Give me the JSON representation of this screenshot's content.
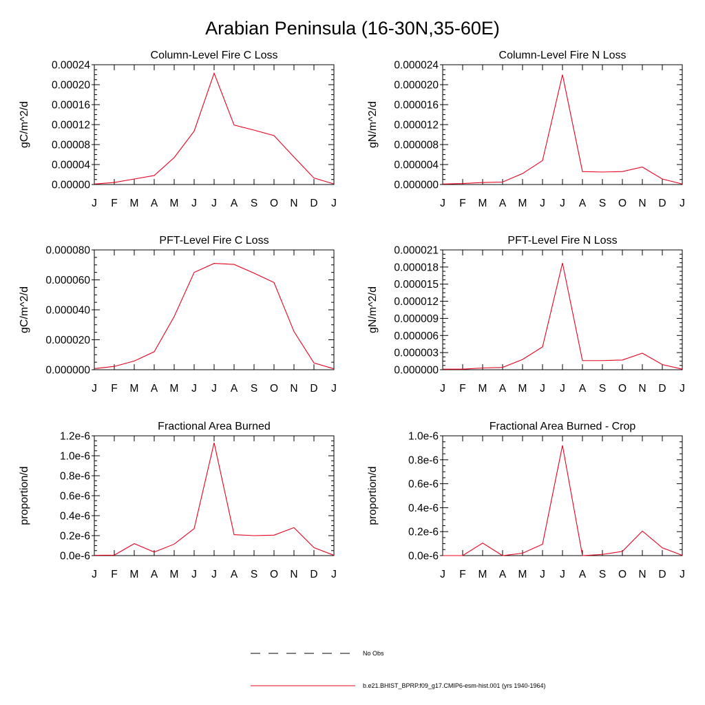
{
  "title": "Arabian Peninsula (16-30N,35-60E)",
  "colors": {
    "series": "#e8001c",
    "obs": "#000000",
    "axis": "#000000"
  },
  "legend": {
    "obs_label": "No Obs",
    "model_label": "b.e21.BHIST_BPRP.f09_g17.CMIP6-esm-hist.001 (yrs 1940-1964)"
  },
  "chart_data": [
    {
      "type": "line",
      "title": "Column-Level Fire C Loss",
      "ylabel": "gC/m^2/d",
      "categories": [
        "J",
        "F",
        "M",
        "A",
        "M",
        "J",
        "J",
        "A",
        "S",
        "O",
        "N",
        "D",
        "J"
      ],
      "yticks": [
        "0.00000",
        "0.00004",
        "0.00008",
        "0.00012",
        "0.00016",
        "0.00020",
        "0.00024"
      ],
      "ylim": [
        0,
        0.00024
      ],
      "series": [
        {
          "values": [
            1e-06,
            4e-06,
            1.1e-05,
            1.8e-05,
            5.4e-05,
            0.000107,
            0.000223,
            0.000119,
            0.000109,
            9.8e-05,
            5.5e-05,
            1.3e-05,
            1e-06
          ]
        }
      ]
    },
    {
      "type": "line",
      "title": "Column-Level Fire N Loss",
      "ylabel": "gN/m^2/d",
      "categories": [
        "J",
        "F",
        "M",
        "A",
        "M",
        "J",
        "J",
        "A",
        "S",
        "O",
        "N",
        "D",
        "J"
      ],
      "yticks": [
        "0.000000",
        "0.000004",
        "0.000008",
        "0.000012",
        "0.000016",
        "0.000020",
        "0.000024"
      ],
      "ylim": [
        0,
        2.4e-05
      ],
      "series": [
        {
          "values": [
            1e-07,
            2e-07,
            4e-07,
            5e-07,
            2.2e-06,
            4.8e-06,
            2.2e-05,
            2.6e-06,
            2.5e-06,
            2.6e-06,
            3.5e-06,
            1.1e-06,
            1e-07
          ]
        }
      ]
    },
    {
      "type": "line",
      "title": "PFT-Level Fire C Loss",
      "ylabel": "gC/m^2/d",
      "categories": [
        "J",
        "F",
        "M",
        "A",
        "M",
        "J",
        "J",
        "A",
        "S",
        "O",
        "N",
        "D",
        "J"
      ],
      "yticks": [
        "0.000000",
        "0.000020",
        "0.000040",
        "0.000060",
        "0.000080"
      ],
      "ylim": [
        0,
        8e-05
      ],
      "series": [
        {
          "values": [
            7e-07,
            2.2e-06,
            5.8e-06,
            1.2e-05,
            3.55e-05,
            6.5e-05,
            7.1e-05,
            7.03e-05,
            6.45e-05,
            5.82e-05,
            2.55e-05,
            4.5e-06,
            6e-07
          ]
        }
      ]
    },
    {
      "type": "line",
      "title": "PFT-Level Fire N Loss",
      "ylabel": "gN/m^2/d",
      "categories": [
        "J",
        "F",
        "M",
        "A",
        "M",
        "J",
        "J",
        "A",
        "S",
        "O",
        "N",
        "D",
        "J"
      ],
      "yticks": [
        "0.000000",
        "0.000003",
        "0.000006",
        "0.000009",
        "0.000012",
        "0.000015",
        "0.000018",
        "0.000021"
      ],
      "ylim": [
        0,
        2.1e-05
      ],
      "series": [
        {
          "values": [
            1e-07,
            1e-07,
            3e-07,
            4e-07,
            1.8e-06,
            4e-06,
            1.87e-05,
            1.6e-06,
            1.6e-06,
            1.7e-06,
            2.9e-06,
            9e-07,
            1e-07
          ]
        }
      ]
    },
    {
      "type": "line",
      "title": "Fractional Area Burned",
      "ylabel": "proportion/d",
      "categories": [
        "J",
        "F",
        "M",
        "A",
        "M",
        "J",
        "J",
        "A",
        "S",
        "O",
        "N",
        "D",
        "J"
      ],
      "yticks": [
        "0.0e-6",
        "0.2e-6",
        "0.4e-6",
        "0.6e-6",
        "0.8e-6",
        "1.0e-6",
        "1.2e-6"
      ],
      "ylim": [
        0,
        1.2e-06
      ],
      "series": [
        {
          "values": [
            3e-09,
            5e-09,
            1.2e-07,
            3.5e-08,
            1.15e-07,
            2.7e-07,
            1.13e-06,
            2.1e-07,
            2e-07,
            2.05e-07,
            2.8e-07,
            8e-08,
            3e-09
          ]
        }
      ]
    },
    {
      "type": "line",
      "title": "Fractional Area Burned - Crop",
      "ylabel": "proportion/d",
      "categories": [
        "J",
        "F",
        "M",
        "A",
        "M",
        "J",
        "J",
        "A",
        "S",
        "O",
        "N",
        "D",
        "J"
      ],
      "yticks": [
        "0.0e-6",
        "0.2e-6",
        "0.4e-6",
        "0.6e-6",
        "0.8e-6",
        "1.0e-6"
      ],
      "ylim": [
        0,
        1e-06
      ],
      "series": [
        {
          "values": [
            0.0,
            0.0,
            1.05e-07,
            0.0,
            2e-08,
            9.5e-08,
            9.2e-07,
            0.0,
            1e-08,
            3.5e-08,
            2.05e-07,
            6.5e-08,
            2e-09
          ]
        }
      ]
    }
  ]
}
